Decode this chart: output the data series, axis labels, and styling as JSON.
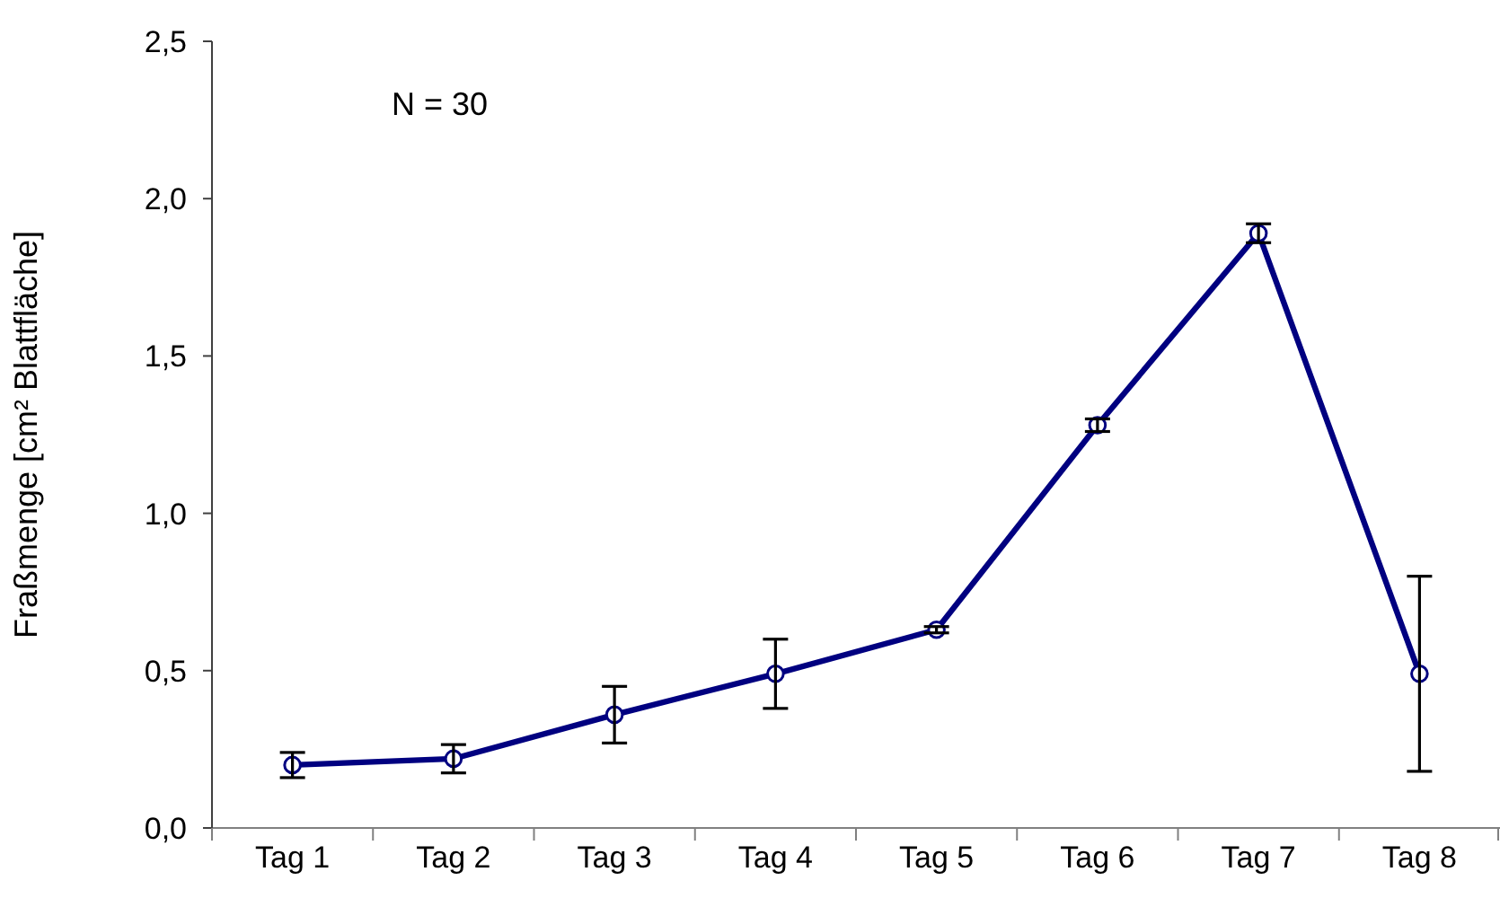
{
  "chart_data": {
    "type": "line",
    "ylabel": "Fraßmenge [cm² Blattfläche]",
    "annotations": [
      "N = 30"
    ],
    "categories": [
      "Tag 1",
      "Tag 2",
      "Tag 3",
      "Tag 4",
      "Tag 5",
      "Tag 6",
      "Tag 7",
      "Tag 8"
    ],
    "series": [
      {
        "color": "#000080",
        "values": [
          0.2,
          0.22,
          0.36,
          0.49,
          0.63,
          1.28,
          1.89,
          0.49
        ],
        "errors": [
          0.04,
          0.045,
          0.09,
          0.11,
          0.01,
          0.02,
          0.03,
          0.31
        ]
      }
    ],
    "ylim": [
      0,
      2.5
    ],
    "yticks": [
      {
        "value": 0,
        "label": "0,0"
      },
      {
        "value": 0.5,
        "label": "0,5"
      },
      {
        "value": 1,
        "label": "1,0"
      },
      {
        "value": 1.5,
        "label": "1,5"
      },
      {
        "value": 2,
        "label": "2,0"
      },
      {
        "value": 2.5,
        "label": "2,5"
      }
    ],
    "marker": "circle"
  }
}
